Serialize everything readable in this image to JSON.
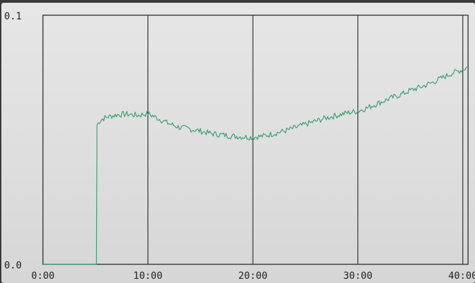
{
  "chart_data": {
    "type": "line",
    "title": "",
    "xlabel": "",
    "ylabel": "",
    "ylim": [
      0.0,
      0.1
    ],
    "y_tick_labels": [
      "0.1",
      "0.0"
    ],
    "x_tick_labels": [
      "0:00",
      "10:00",
      "20:00",
      "30:00",
      "40:00"
    ],
    "x_tick_minutes": [
      0,
      10,
      20,
      30,
      40
    ],
    "xlim_minutes": [
      0,
      40.5
    ],
    "grid": "vertical lines at x tick positions",
    "series": [
      {
        "color": "#3f9e72",
        "x_minutes": [
          0,
          5.1,
          5.15,
          5.5,
          6,
          7,
          8,
          9,
          10,
          11,
          12,
          13,
          14,
          15,
          16,
          17,
          18,
          19,
          20,
          21,
          22,
          23,
          24,
          25,
          26,
          27,
          28,
          29,
          30,
          31,
          32,
          33,
          34,
          35,
          36,
          37,
          38,
          39,
          40,
          40.5
        ],
        "y": [
          0.0,
          0.0,
          0.056,
          0.058,
          0.059,
          0.06,
          0.0603,
          0.0598,
          0.0605,
          0.0585,
          0.0565,
          0.055,
          0.0543,
          0.0535,
          0.0525,
          0.052,
          0.0515,
          0.0512,
          0.051,
          0.0515,
          0.0525,
          0.0535,
          0.0548,
          0.0562,
          0.0575,
          0.0588,
          0.0598,
          0.0608,
          0.0615,
          0.063,
          0.0648,
          0.0665,
          0.068,
          0.0698,
          0.0712,
          0.0728,
          0.0748,
          0.0768,
          0.0782,
          0.0792
        ]
      }
    ]
  },
  "colors": {
    "frame": "#2a2a2a",
    "grid": "#333333",
    "line": "#3f9e72",
    "background": "#e2e2e2"
  }
}
